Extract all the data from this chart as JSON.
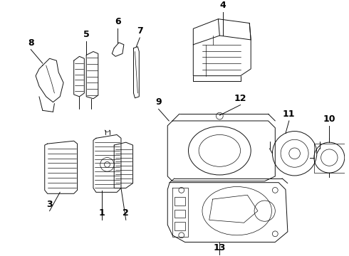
{
  "background_color": "#ffffff",
  "line_color": "#111111",
  "label_color": "#000000",
  "label_fontsize": 9,
  "label_fontweight": "bold",
  "fig_width": 4.9,
  "fig_height": 3.6,
  "dpi": 100
}
